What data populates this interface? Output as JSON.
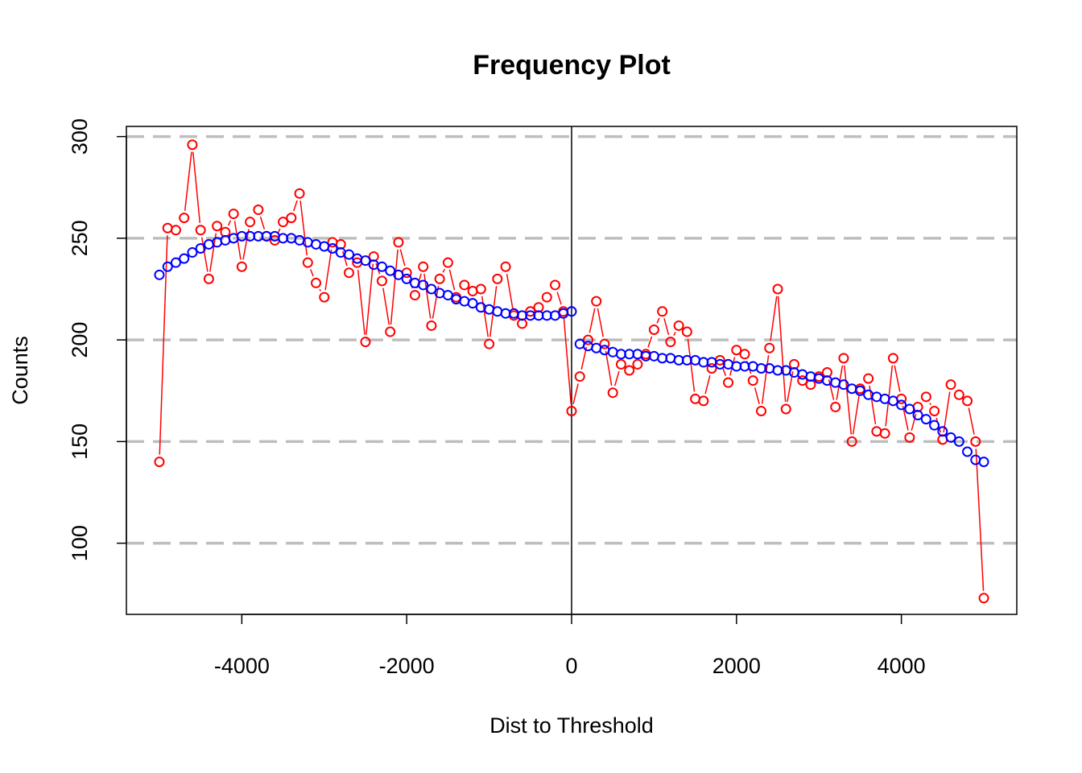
{
  "chart_data": {
    "type": "scatter",
    "title": "Frequency Plot",
    "xlabel": "Dist to Threshold",
    "ylabel": "Counts",
    "xlim": [
      -5400,
      5400
    ],
    "ylim": [
      65,
      305
    ],
    "x_ticks": [
      -4000,
      -2000,
      0,
      2000,
      4000
    ],
    "x_tick_labels": [
      "-4000",
      "-2000",
      "0",
      "2000",
      "4000"
    ],
    "y_ticks": [
      100,
      150,
      200,
      250,
      300
    ],
    "y_tick_labels": [
      "100",
      "150",
      "200",
      "250",
      "300"
    ],
    "grid": {
      "horizontal": [
        100,
        150,
        200,
        250,
        300
      ],
      "style": "dashed",
      "color": "#bebebe"
    },
    "threshold_line": 0,
    "colors": {
      "observed": "#ff0000",
      "fitted": "#0000ff",
      "grid": "#bebebe",
      "axis": "#000000"
    },
    "series": [
      {
        "role": "observed",
        "x": [
          -5000,
          -4900,
          -4800,
          -4700,
          -4600,
          -4500,
          -4400,
          -4300,
          -4200,
          -4100,
          -4000,
          -3900,
          -3800,
          -3700,
          -3600,
          -3500,
          -3400,
          -3300,
          -3200,
          -3100,
          -3000,
          -2900,
          -2800,
          -2700,
          -2600,
          -2500,
          -2400,
          -2300,
          -2200,
          -2100,
          -2000,
          -1900,
          -1800,
          -1700,
          -1600,
          -1500,
          -1400,
          -1300,
          -1200,
          -1100,
          -1000,
          -900,
          -800,
          -700,
          -600,
          -500,
          -400,
          -300,
          -200,
          -100,
          0,
          100,
          200,
          300,
          400,
          500,
          600,
          700,
          800,
          900,
          1000,
          1100,
          1200,
          1300,
          1400,
          1500,
          1600,
          1700,
          1800,
          1900,
          2000,
          2100,
          2200,
          2300,
          2400,
          2500,
          2600,
          2700,
          2800,
          2900,
          3000,
          3100,
          3200,
          3300,
          3400,
          3500,
          3600,
          3700,
          3800,
          3900,
          4000,
          4100,
          4200,
          4300,
          4400,
          4500,
          4600,
          4700,
          4800,
          4900,
          5000
        ],
        "y": [
          140,
          255,
          254,
          260,
          296,
          254,
          230,
          256,
          253,
          262,
          236,
          258,
          264,
          251,
          249,
          258,
          260,
          272,
          238,
          228,
          221,
          248,
          247,
          233,
          238,
          199,
          241,
          229,
          204,
          248,
          233,
          222,
          236,
          207,
          230,
          238,
          221,
          227,
          224,
          225,
          198,
          230,
          236,
          212,
          208,
          214,
          216,
          221,
          227,
          214,
          165,
          182,
          200,
          219,
          198,
          174,
          188,
          185,
          188,
          193,
          205,
          214,
          199,
          207,
          204,
          171,
          170,
          186,
          190,
          179,
          195,
          193,
          180,
          165,
          196,
          225,
          166,
          188,
          180,
          178,
          182,
          184,
          167,
          191,
          150,
          176,
          181,
          155,
          154,
          191,
          171,
          152,
          167,
          172,
          165,
          151,
          178,
          173,
          170,
          150,
          73
        ]
      },
      {
        "role": "fitted",
        "x": [
          -5000,
          -4900,
          -4800,
          -4700,
          -4600,
          -4500,
          -4400,
          -4300,
          -4200,
          -4100,
          -4000,
          -3900,
          -3800,
          -3700,
          -3600,
          -3500,
          -3400,
          -3300,
          -3200,
          -3100,
          -3000,
          -2900,
          -2800,
          -2700,
          -2600,
          -2500,
          -2400,
          -2300,
          -2200,
          -2100,
          -2000,
          -1900,
          -1800,
          -1700,
          -1600,
          -1500,
          -1400,
          -1300,
          -1200,
          -1100,
          -1000,
          -900,
          -800,
          -700,
          -600,
          -500,
          -400,
          -300,
          -200,
          -100,
          0,
          100,
          200,
          300,
          400,
          500,
          600,
          700,
          800,
          900,
          1000,
          1100,
          1200,
          1300,
          1400,
          1500,
          1600,
          1700,
          1800,
          1900,
          2000,
          2100,
          2200,
          2300,
          2400,
          2500,
          2600,
          2700,
          2800,
          2900,
          3000,
          3100,
          3200,
          3300,
          3400,
          3500,
          3600,
          3700,
          3800,
          3900,
          4000,
          4100,
          4200,
          4300,
          4400,
          4500,
          4600,
          4700,
          4800,
          4900,
          5000
        ],
        "y": [
          232,
          236,
          238,
          240,
          243,
          245,
          247,
          248,
          249,
          250,
          251,
          251,
          251,
          251,
          251,
          250,
          250,
          249,
          248,
          247,
          246,
          245,
          243,
          242,
          240,
          239,
          237,
          236,
          234,
          232,
          230,
          228,
          227,
          225,
          223,
          222,
          220,
          219,
          218,
          216,
          215,
          214,
          213,
          213,
          212,
          212,
          212,
          212,
          212,
          213,
          214,
          198,
          197,
          196,
          195,
          194,
          193,
          193,
          193,
          192,
          192,
          191,
          191,
          190,
          190,
          190,
          189,
          189,
          188,
          188,
          187,
          187,
          187,
          186,
          186,
          185,
          185,
          184,
          183,
          182,
          181,
          180,
          179,
          178,
          176,
          175,
          173,
          172,
          171,
          170,
          168,
          166,
          163,
          161,
          158,
          155,
          152,
          150,
          145,
          141,
          140
        ]
      }
    ]
  }
}
